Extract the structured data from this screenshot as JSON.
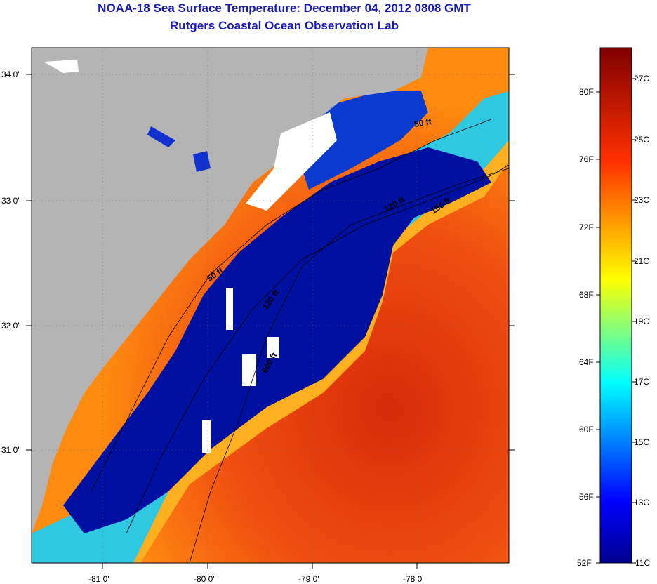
{
  "header": {
    "title": "NOAA-18 Sea Surface Temperature:  December 04, 2012 0808 GMT",
    "subtitle": "Rutgers Coastal Ocean Observation Lab"
  },
  "map": {
    "lat_ticks": [
      "34 0'",
      "33 0'",
      "32 0'",
      "31 0'"
    ],
    "lon_ticks": [
      "-81 0'",
      "-80 0'",
      "-79 0'",
      "-78 0'"
    ],
    "contour_labels": [
      "50 ft",
      "120 ft",
      "150 ft",
      "50 ft",
      "120 ft",
      "600 ft"
    ],
    "colors": {
      "land": "#b4b4b4",
      "cold": "#0010a0",
      "warm": "#ee3a10",
      "cloud": "#ffffff"
    }
  },
  "colorbar": {
    "fahrenheit": [
      "80F",
      "76F",
      "72F",
      "68F",
      "64F",
      "60F",
      "56F",
      "52F"
    ],
    "celsius": [
      "27C",
      "25C",
      "23C",
      "21C",
      "19C",
      "17C",
      "15C",
      "13C",
      "11C"
    ]
  }
}
